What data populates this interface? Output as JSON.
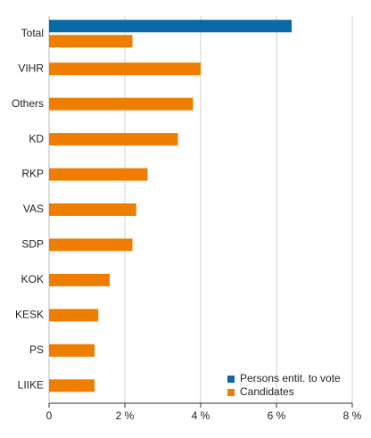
{
  "chart_data": {
    "type": "hbar",
    "categories": [
      "Total",
      "VIHR",
      "Others",
      "KD",
      "RKP",
      "VAS",
      "SDP",
      "KOK",
      "KESK",
      "PS",
      "LIIKE"
    ],
    "series": [
      {
        "name": "Persons entit. to vote",
        "color": "#0a6aa8",
        "values": [
          6.4,
          null,
          null,
          null,
          null,
          null,
          null,
          null,
          null,
          null,
          null
        ]
      },
      {
        "name": "Candidates",
        "color": "#ef7d00",
        "values": [
          2.2,
          4.0,
          3.8,
          3.4,
          2.6,
          2.3,
          2.2,
          1.6,
          1.3,
          1.2,
          1.2
        ]
      }
    ],
    "xlim": [
      0,
      8
    ],
    "xticks": [
      {
        "value": 0,
        "label": "0"
      },
      {
        "value": 2,
        "label": "2 %"
      },
      {
        "value": 4,
        "label": "4 %"
      },
      {
        "value": 6,
        "label": "6 %"
      },
      {
        "value": 8,
        "label": "8 %"
      }
    ],
    "grid": true,
    "legend": "lower-right"
  }
}
